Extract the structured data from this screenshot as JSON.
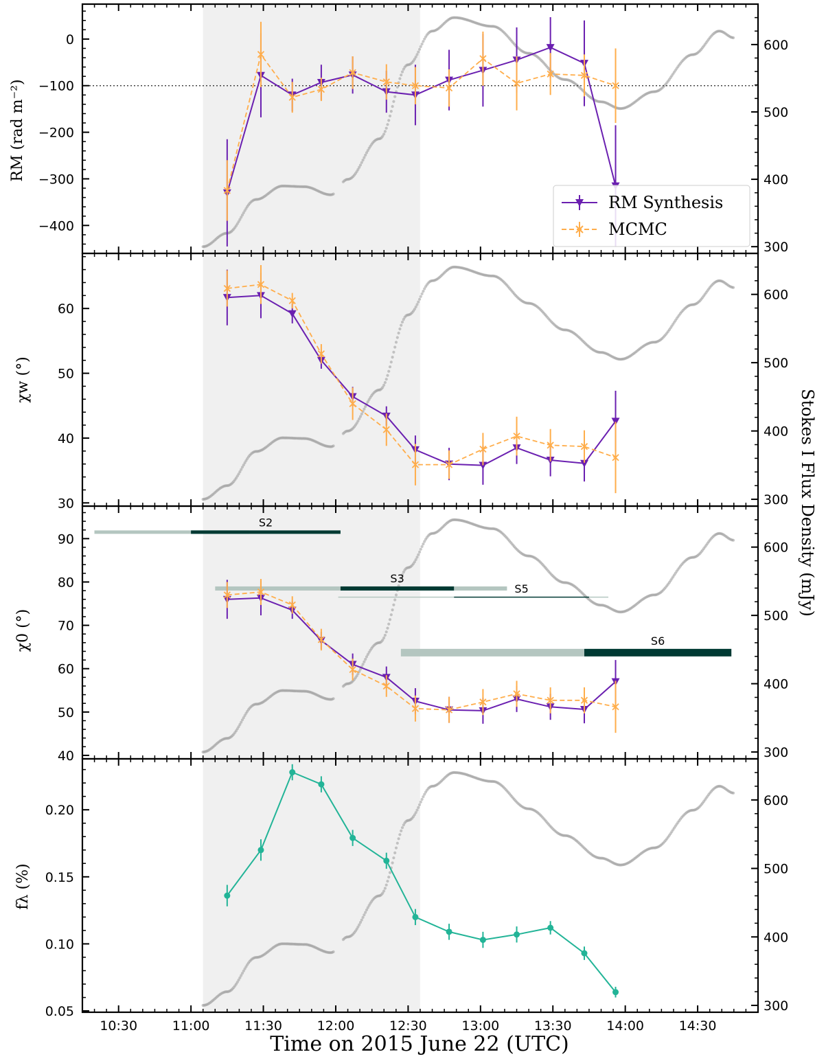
{
  "figure": {
    "x_axis_label": "Time on 2015 June 22 (UTC)",
    "right_axis_label": "Stokes I Flux Density (mJy)",
    "x_tick_labels": [
      "10:30",
      "11:00",
      "11:30",
      "12:00",
      "12:30",
      "13:00",
      "13:30",
      "14:00",
      "14:30"
    ],
    "colors": {
      "rm_synthesis": "#6a1fb0",
      "mcmc": "#ffad4a",
      "fraction": "#22b497",
      "flux": "#9a9a9a",
      "shade": "#f0f0f0",
      "bar_light": "#b4c6c0",
      "bar_dark": "#003a33"
    }
  },
  "chart_data": [
    {
      "type": "line",
      "panel": "rm",
      "ylabel": "RM (rad m⁻²)",
      "ylim": [
        -460,
        75
      ],
      "yticks": [
        0,
        -100,
        -200,
        -300,
        -400
      ],
      "right_ylim": [
        290,
        660
      ],
      "right_yticks": [
        300,
        400,
        500,
        600
      ],
      "reference_line": -100,
      "legend": {
        "placement": "lower-right",
        "entries": [
          "RM Synthesis",
          "MCMC"
        ]
      },
      "series": [
        {
          "name": "RM Synthesis",
          "x": [
            11.25,
            11.483,
            11.7,
            11.9,
            12.117,
            12.35,
            12.55,
            12.783,
            13.017,
            13.25,
            13.483,
            13.717,
            13.933
          ],
          "y": [
            -330,
            -78,
            -120,
            -93,
            -77,
            -113,
            -120,
            -88,
            -67,
            -45,
            -18,
            -52,
            -315
          ],
          "err": [
            115,
            90,
            35,
            38,
            40,
            45,
            65,
            65,
            78,
            70,
            65,
            92,
            130
          ]
        },
        {
          "name": "MCMC",
          "x": [
            11.25,
            11.483,
            11.7,
            11.9,
            12.117,
            12.35,
            12.55,
            12.783,
            13.017,
            13.25,
            13.483,
            13.717,
            13.933
          ],
          "y": [
            -325,
            -33,
            -125,
            -108,
            -72,
            -92,
            -100,
            -105,
            -42,
            -95,
            -75,
            -78,
            -100
          ],
          "err": [
            65,
            70,
            33,
            25,
            35,
            38,
            40,
            40,
            58,
            58,
            45,
            45,
            80
          ]
        }
      ]
    },
    {
      "type": "line",
      "panel": "chi_w",
      "ylabel": "χw (°)",
      "ylim": [
        29.5,
        68.5
      ],
      "yticks": [
        30,
        40,
        50,
        60
      ],
      "right_ylim": [
        290,
        660
      ],
      "right_yticks": [
        300,
        400,
        500,
        600
      ],
      "series": [
        {
          "name": "RM Synthesis",
          "x": [
            11.25,
            11.483,
            11.7,
            11.9,
            12.117,
            12.35,
            12.55,
            12.783,
            13.017,
            13.25,
            13.483,
            13.717,
            13.933
          ],
          "y": [
            61.7,
            62.0,
            59.2,
            52.0,
            46.4,
            43.4,
            38.2,
            36.0,
            35.8,
            38.5,
            36.6,
            36.1,
            42.6
          ],
          "err": [
            4.3,
            3.5,
            1.5,
            1.3,
            1.5,
            1.5,
            2.2,
            2.5,
            3.0,
            2.5,
            2.5,
            2.8,
            4.7
          ]
        },
        {
          "name": "MCMC",
          "x": [
            11.25,
            11.483,
            11.7,
            11.9,
            12.117,
            12.35,
            12.55,
            12.783,
            13.017,
            13.25,
            13.483,
            13.717,
            13.933
          ],
          "y": [
            63.1,
            63.7,
            61.2,
            53.0,
            45.3,
            41.3,
            35.9,
            35.9,
            38.3,
            40.3,
            38.9,
            38.7,
            37.0
          ],
          "err": [
            2.8,
            3.0,
            1.2,
            1.5,
            2.5,
            2.5,
            3.2,
            2.2,
            2.5,
            3.0,
            2.5,
            2.5,
            5.5
          ]
        }
      ]
    },
    {
      "type": "line",
      "panel": "chi_0",
      "ylabel": "χ0 (°)",
      "ylim": [
        39.2,
        97.5
      ],
      "yticks": [
        40,
        50,
        60,
        70,
        80,
        90
      ],
      "right_ylim": [
        290,
        660
      ],
      "right_yticks": [
        300,
        400,
        500,
        600
      ],
      "series": [
        {
          "name": "RM Synthesis",
          "x": [
            11.25,
            11.483,
            11.7,
            11.9,
            12.117,
            12.35,
            12.55,
            12.783,
            13.017,
            13.25,
            13.483,
            13.717,
            13.933
          ],
          "y": [
            76.0,
            76.3,
            73.5,
            66.5,
            61.0,
            58.0,
            52.5,
            50.5,
            50.3,
            53.0,
            51.2,
            50.6,
            57.0
          ],
          "err": [
            4.5,
            4.0,
            2.0,
            2.0,
            2.5,
            2.5,
            3.0,
            3.0,
            3.0,
            3.0,
            3.0,
            3.2,
            5.0
          ]
        },
        {
          "name": "MCMC",
          "x": [
            11.25,
            11.483,
            11.7,
            11.9,
            12.117,
            12.35,
            12.55,
            12.783,
            13.017,
            13.25,
            13.483,
            13.717,
            13.933
          ],
          "y": [
            77.0,
            77.7,
            74.7,
            66.7,
            59.8,
            56.0,
            50.8,
            50.5,
            52.3,
            54.2,
            52.7,
            52.7,
            51.2
          ],
          "err": [
            3.0,
            3.0,
            2.0,
            2.5,
            2.5,
            2.5,
            3.0,
            3.0,
            3.0,
            3.0,
            3.0,
            3.0,
            6.0
          ]
        }
      ],
      "bars": [
        {
          "label": "S2",
          "light": [
            10.333,
            11.4
          ],
          "dark": [
            11.0,
            12.033
          ],
          "y": 91.5,
          "thickness": 5
        },
        {
          "label": "S3",
          "light": [
            11.167,
            12.033
          ],
          "dark": [
            12.033,
            12.817
          ],
          "light2": [
            12.817,
            13.183
          ],
          "y": 78.5,
          "thickness": 6
        },
        {
          "label": "S5",
          "light": [
            12.017,
            12.817
          ],
          "dark": [
            12.817,
            13.75
          ],
          "light2": [
            13.75,
            13.883
          ],
          "y": 76.5,
          "thickness": 1.5
        },
        {
          "label": "S6",
          "light": [
            12.45,
            13.717
          ],
          "dark": [
            13.717,
            14.733
          ],
          "y": 63.7,
          "thickness": 11
        }
      ]
    },
    {
      "type": "line",
      "panel": "fraction",
      "ylabel": "fλ (%)",
      "ylim": [
        0.049,
        0.238
      ],
      "yticks": [
        0.05,
        0.1,
        0.15,
        0.2
      ],
      "right_ylim": [
        290,
        660
      ],
      "right_yticks": [
        300,
        400,
        500,
        600
      ],
      "series": [
        {
          "name": "",
          "x": [
            11.25,
            11.483,
            11.7,
            11.9,
            12.117,
            12.35,
            12.55,
            12.783,
            13.017,
            13.25,
            13.483,
            13.717,
            13.933
          ],
          "y": [
            0.136,
            0.17,
            0.228,
            0.219,
            0.179,
            0.162,
            0.12,
            0.109,
            0.103,
            0.107,
            0.112,
            0.093,
            0.064
          ],
          "err": [
            0.008,
            0.008,
            0.006,
            0.006,
            0.006,
            0.006,
            0.006,
            0.006,
            0.006,
            0.006,
            0.005,
            0.005,
            0.004
          ]
        }
      ]
    }
  ]
}
